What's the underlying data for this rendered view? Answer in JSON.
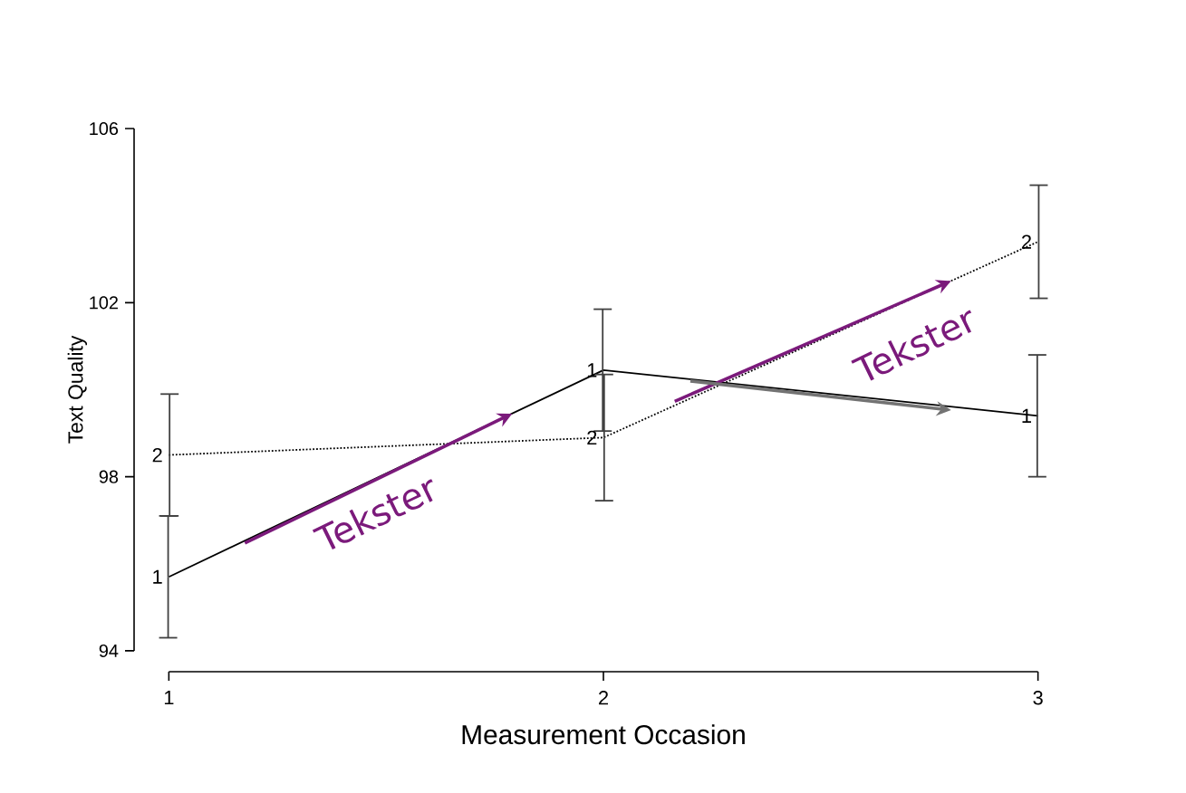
{
  "chart_data": {
    "type": "line",
    "xlabel": "Measurement Occasion",
    "ylabel": "Text Quality",
    "x": [
      1,
      2,
      3
    ],
    "xlim": [
      1,
      3
    ],
    "xticks": [
      1,
      2,
      3
    ],
    "ylim": [
      94,
      106
    ],
    "yticks": [
      94,
      98,
      102,
      106
    ],
    "series": [
      {
        "name": "1",
        "color": "#000000",
        "line_style": "solid",
        "values": [
          95.7,
          100.45,
          99.4
        ],
        "errors": [
          1.4,
          1.4,
          1.4
        ]
      },
      {
        "name": "2",
        "color": "#000000",
        "line_style": "dotted",
        "values": [
          98.5,
          98.9,
          103.4
        ],
        "errors": [
          1.4,
          1.45,
          1.3
        ]
      }
    ],
    "annotations": [
      {
        "text": "Tekster",
        "x": 1.79,
        "y": 99.45
      },
      {
        "text": "Tekster",
        "x": 2.8,
        "y": 102.5
      }
    ]
  }
}
